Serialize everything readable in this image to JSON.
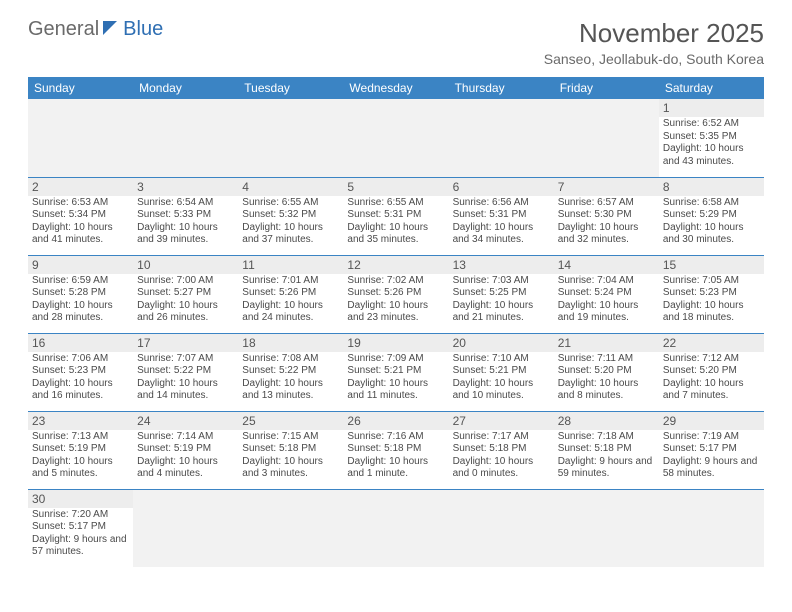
{
  "logo": {
    "part1": "General",
    "part2": "Blue"
  },
  "title": {
    "month": "November 2025",
    "location": "Sanseo, Jeollabuk-do, South Korea"
  },
  "colors": {
    "header_bg": "#3b84c4",
    "header_text": "#ffffff",
    "daynum_bg": "#ededed",
    "border": "#3b84c4",
    "blank_bg": "#f2f2f2"
  },
  "weekdays": [
    "Sunday",
    "Monday",
    "Tuesday",
    "Wednesday",
    "Thursday",
    "Friday",
    "Saturday"
  ],
  "weeks": [
    [
      null,
      null,
      null,
      null,
      null,
      null,
      {
        "n": "1",
        "sunrise": "Sunrise: 6:52 AM",
        "sunset": "Sunset: 5:35 PM",
        "daylight": "Daylight: 10 hours and 43 minutes."
      }
    ],
    [
      {
        "n": "2",
        "sunrise": "Sunrise: 6:53 AM",
        "sunset": "Sunset: 5:34 PM",
        "daylight": "Daylight: 10 hours and 41 minutes."
      },
      {
        "n": "3",
        "sunrise": "Sunrise: 6:54 AM",
        "sunset": "Sunset: 5:33 PM",
        "daylight": "Daylight: 10 hours and 39 minutes."
      },
      {
        "n": "4",
        "sunrise": "Sunrise: 6:55 AM",
        "sunset": "Sunset: 5:32 PM",
        "daylight": "Daylight: 10 hours and 37 minutes."
      },
      {
        "n": "5",
        "sunrise": "Sunrise: 6:55 AM",
        "sunset": "Sunset: 5:31 PM",
        "daylight": "Daylight: 10 hours and 35 minutes."
      },
      {
        "n": "6",
        "sunrise": "Sunrise: 6:56 AM",
        "sunset": "Sunset: 5:31 PM",
        "daylight": "Daylight: 10 hours and 34 minutes."
      },
      {
        "n": "7",
        "sunrise": "Sunrise: 6:57 AM",
        "sunset": "Sunset: 5:30 PM",
        "daylight": "Daylight: 10 hours and 32 minutes."
      },
      {
        "n": "8",
        "sunrise": "Sunrise: 6:58 AM",
        "sunset": "Sunset: 5:29 PM",
        "daylight": "Daylight: 10 hours and 30 minutes."
      }
    ],
    [
      {
        "n": "9",
        "sunrise": "Sunrise: 6:59 AM",
        "sunset": "Sunset: 5:28 PM",
        "daylight": "Daylight: 10 hours and 28 minutes."
      },
      {
        "n": "10",
        "sunrise": "Sunrise: 7:00 AM",
        "sunset": "Sunset: 5:27 PM",
        "daylight": "Daylight: 10 hours and 26 minutes."
      },
      {
        "n": "11",
        "sunrise": "Sunrise: 7:01 AM",
        "sunset": "Sunset: 5:26 PM",
        "daylight": "Daylight: 10 hours and 24 minutes."
      },
      {
        "n": "12",
        "sunrise": "Sunrise: 7:02 AM",
        "sunset": "Sunset: 5:26 PM",
        "daylight": "Daylight: 10 hours and 23 minutes."
      },
      {
        "n": "13",
        "sunrise": "Sunrise: 7:03 AM",
        "sunset": "Sunset: 5:25 PM",
        "daylight": "Daylight: 10 hours and 21 minutes."
      },
      {
        "n": "14",
        "sunrise": "Sunrise: 7:04 AM",
        "sunset": "Sunset: 5:24 PM",
        "daylight": "Daylight: 10 hours and 19 minutes."
      },
      {
        "n": "15",
        "sunrise": "Sunrise: 7:05 AM",
        "sunset": "Sunset: 5:23 PM",
        "daylight": "Daylight: 10 hours and 18 minutes."
      }
    ],
    [
      {
        "n": "16",
        "sunrise": "Sunrise: 7:06 AM",
        "sunset": "Sunset: 5:23 PM",
        "daylight": "Daylight: 10 hours and 16 minutes."
      },
      {
        "n": "17",
        "sunrise": "Sunrise: 7:07 AM",
        "sunset": "Sunset: 5:22 PM",
        "daylight": "Daylight: 10 hours and 14 minutes."
      },
      {
        "n": "18",
        "sunrise": "Sunrise: 7:08 AM",
        "sunset": "Sunset: 5:22 PM",
        "daylight": "Daylight: 10 hours and 13 minutes."
      },
      {
        "n": "19",
        "sunrise": "Sunrise: 7:09 AM",
        "sunset": "Sunset: 5:21 PM",
        "daylight": "Daylight: 10 hours and 11 minutes."
      },
      {
        "n": "20",
        "sunrise": "Sunrise: 7:10 AM",
        "sunset": "Sunset: 5:21 PM",
        "daylight": "Daylight: 10 hours and 10 minutes."
      },
      {
        "n": "21",
        "sunrise": "Sunrise: 7:11 AM",
        "sunset": "Sunset: 5:20 PM",
        "daylight": "Daylight: 10 hours and 8 minutes."
      },
      {
        "n": "22",
        "sunrise": "Sunrise: 7:12 AM",
        "sunset": "Sunset: 5:20 PM",
        "daylight": "Daylight: 10 hours and 7 minutes."
      }
    ],
    [
      {
        "n": "23",
        "sunrise": "Sunrise: 7:13 AM",
        "sunset": "Sunset: 5:19 PM",
        "daylight": "Daylight: 10 hours and 5 minutes."
      },
      {
        "n": "24",
        "sunrise": "Sunrise: 7:14 AM",
        "sunset": "Sunset: 5:19 PM",
        "daylight": "Daylight: 10 hours and 4 minutes."
      },
      {
        "n": "25",
        "sunrise": "Sunrise: 7:15 AM",
        "sunset": "Sunset: 5:18 PM",
        "daylight": "Daylight: 10 hours and 3 minutes."
      },
      {
        "n": "26",
        "sunrise": "Sunrise: 7:16 AM",
        "sunset": "Sunset: 5:18 PM",
        "daylight": "Daylight: 10 hours and 1 minute."
      },
      {
        "n": "27",
        "sunrise": "Sunrise: 7:17 AM",
        "sunset": "Sunset: 5:18 PM",
        "daylight": "Daylight: 10 hours and 0 minutes."
      },
      {
        "n": "28",
        "sunrise": "Sunrise: 7:18 AM",
        "sunset": "Sunset: 5:18 PM",
        "daylight": "Daylight: 9 hours and 59 minutes."
      },
      {
        "n": "29",
        "sunrise": "Sunrise: 7:19 AM",
        "sunset": "Sunset: 5:17 PM",
        "daylight": "Daylight: 9 hours and 58 minutes."
      }
    ],
    [
      {
        "n": "30",
        "sunrise": "Sunrise: 7:20 AM",
        "sunset": "Sunset: 5:17 PM",
        "daylight": "Daylight: 9 hours and 57 minutes."
      },
      null,
      null,
      null,
      null,
      null,
      null
    ]
  ]
}
